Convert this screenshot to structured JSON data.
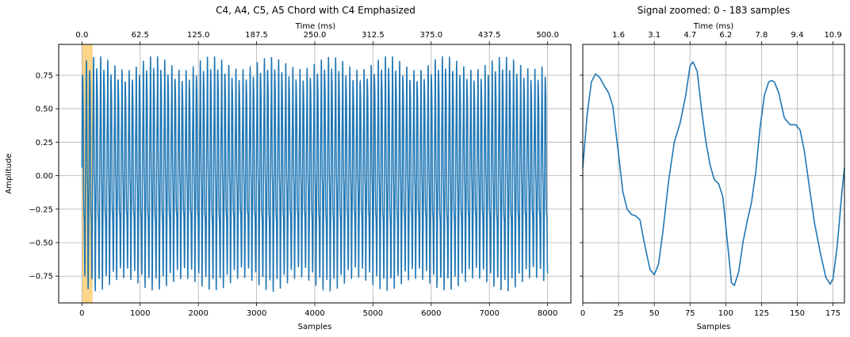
{
  "chart_data": [
    {
      "type": "line",
      "title": "C4, A4, C5, A5 Chord with C4 Emphasized",
      "xlabel": "Samples",
      "ylabel": "Amplitude",
      "top_xlabel": "Time (ms)",
      "xlim": [
        -400,
        8400
      ],
      "ylim": [
        -0.95,
        0.98
      ],
      "x_ticks": [
        "0",
        "1000",
        "2000",
        "3000",
        "4000",
        "5000",
        "6000",
        "7000",
        "8000"
      ],
      "x_tick_values": [
        0,
        1000,
        2000,
        3000,
        4000,
        5000,
        6000,
        7000,
        8000
      ],
      "y_ticks": [
        "0.75",
        "0.50",
        "0.25",
        "0.00",
        "−0.25",
        "−0.50",
        "−0.75"
      ],
      "y_tick_values": [
        0.75,
        0.5,
        0.25,
        0.0,
        -0.25,
        -0.5,
        -0.75
      ],
      "top_ticks": [
        "0.0",
        "62.5",
        "125.0",
        "187.5",
        "250.0",
        "312.5",
        "375.0",
        "437.5",
        "500.0"
      ],
      "top_tick_values": [
        0,
        1000,
        2000,
        3000,
        4000,
        5000,
        6000,
        7000,
        8000
      ],
      "highlight_span": [
        0,
        183
      ],
      "highlight_color": "#fbd58a",
      "grid": true,
      "series": [
        {
          "color": "#1f77b4",
          "x_range": [
            0,
            8000
          ],
          "period_samples": 122.3,
          "peak_max": 0.89,
          "trough_min": -0.88
        }
      ]
    },
    {
      "type": "line",
      "title": "Signal zoomed: 0 - 183 samples",
      "xlabel": "Samples",
      "top_xlabel": "Time (ms)",
      "xlim": [
        0,
        183
      ],
      "ylim": [
        -0.95,
        0.98
      ],
      "x_ticks": [
        "0",
        "25",
        "50",
        "75",
        "100",
        "125",
        "150",
        "175"
      ],
      "x_tick_values": [
        0,
        25,
        50,
        75,
        100,
        125,
        150,
        175
      ],
      "top_ticks": [
        "1.6",
        "3.1",
        "4.7",
        "6.2",
        "7.8",
        "9.4",
        "10.9"
      ],
      "top_tick_values": [
        25,
        50,
        75,
        100,
        125,
        150,
        175
      ],
      "grid": true,
      "series": [
        {
          "color": "#1f77b4",
          "points": [
            [
              0,
              0.06
            ],
            [
              3,
              0.45
            ],
            [
              6,
              0.7
            ],
            [
              9,
              0.76
            ],
            [
              12,
              0.73
            ],
            [
              15,
              0.67
            ],
            [
              18,
              0.62
            ],
            [
              21,
              0.52
            ],
            [
              25,
              0.16
            ],
            [
              28,
              -0.12
            ],
            [
              31,
              -0.25
            ],
            [
              34,
              -0.29
            ],
            [
              37,
              -0.3
            ],
            [
              40,
              -0.33
            ],
            [
              43,
              -0.5
            ],
            [
              47,
              -0.7
            ],
            [
              50,
              -0.74
            ],
            [
              53,
              -0.66
            ],
            [
              56,
              -0.42
            ],
            [
              60,
              -0.04
            ],
            [
              64,
              0.25
            ],
            [
              68,
              0.39
            ],
            [
              72,
              0.6
            ],
            [
              75,
              0.82
            ],
            [
              77,
              0.85
            ],
            [
              80,
              0.78
            ],
            [
              83,
              0.5
            ],
            [
              86,
              0.26
            ],
            [
              89,
              0.08
            ],
            [
              92,
              -0.03
            ],
            [
              95,
              -0.06
            ],
            [
              98,
              -0.16
            ],
            [
              101,
              -0.48
            ],
            [
              104,
              -0.8
            ],
            [
              106,
              -0.82
            ],
            [
              109,
              -0.72
            ],
            [
              112,
              -0.5
            ],
            [
              115,
              -0.34
            ],
            [
              118,
              -0.2
            ],
            [
              121,
              0.03
            ],
            [
              124,
              0.36
            ],
            [
              127,
              0.6
            ],
            [
              130,
              0.7
            ],
            [
              132,
              0.71
            ],
            [
              134,
              0.7
            ],
            [
              137,
              0.62
            ],
            [
              141,
              0.43
            ],
            [
              145,
              0.38
            ],
            [
              149,
              0.38
            ],
            [
              152,
              0.34
            ],
            [
              155,
              0.18
            ],
            [
              158,
              -0.05
            ],
            [
              162,
              -0.35
            ],
            [
              166,
              -0.57
            ],
            [
              170,
              -0.76
            ],
            [
              173,
              -0.81
            ],
            [
              175,
              -0.77
            ],
            [
              178,
              -0.52
            ],
            [
              181,
              -0.15
            ],
            [
              183,
              0.06
            ]
          ]
        }
      ]
    }
  ]
}
